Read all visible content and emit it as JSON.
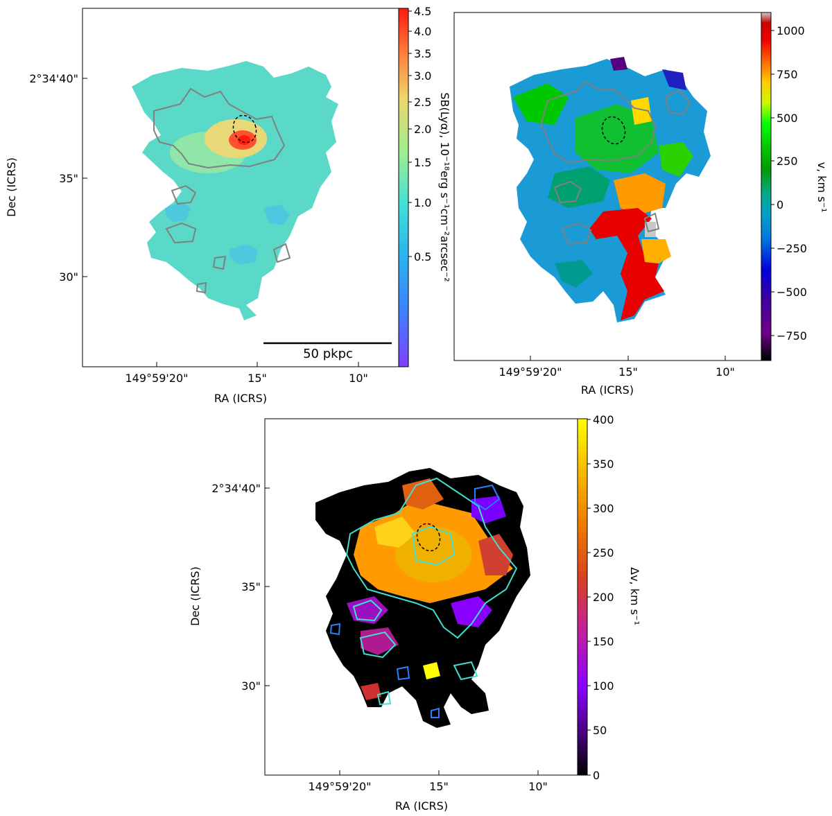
{
  "chart_data": [
    {
      "type": "heatmap",
      "panel": "top-left",
      "xlabel": "RA (ICRS)",
      "ylabel": "Dec (ICRS)",
      "x_ticks": [
        "149°59'20\"",
        "15\"",
        "10\""
      ],
      "y_ticks": [
        "2°34'40\"",
        "35\"",
        "30\""
      ],
      "colorbar": {
        "label": "SB(Lyα),  10⁻¹⁸erg s⁻¹cm⁻²arcsec⁻²",
        "scale": "nonlinear",
        "colormap": "rainbow",
        "ticks": [
          "4.5",
          "4.0",
          "3.5",
          "3.0",
          "2.5",
          "2.0",
          "1.5",
          "1.0",
          "0.5"
        ]
      },
      "scalebar_label": "50 pkpc",
      "contour_color": "#808080"
    },
    {
      "type": "heatmap",
      "panel": "top-right",
      "xlabel": "RA (ICRS)",
      "ylabel": "",
      "x_ticks": [
        "149°59'20\"",
        "15\"",
        "10\""
      ],
      "colorbar": {
        "label": "v, km s⁻¹",
        "colormap": "nipy_spectral",
        "range": [
          -900,
          1100
        ],
        "ticks": [
          "1000",
          "750",
          "500",
          "250",
          "0",
          "−250",
          "−500",
          "−750"
        ]
      },
      "contour_color": "#808080"
    },
    {
      "type": "heatmap",
      "panel": "bottom",
      "xlabel": "RA (ICRS)",
      "ylabel": "Dec (ICRS)",
      "x_ticks": [
        "149°59'20\"",
        "15\"",
        "10\""
      ],
      "y_ticks": [
        "2°34'40\"",
        "35\"",
        "30\""
      ],
      "colorbar": {
        "label": "Δv, km s⁻¹",
        "colormap": "gnuplot",
        "range": [
          0,
          400
        ],
        "ticks": [
          "400",
          "350",
          "300",
          "250",
          "200",
          "150",
          "100",
          "50",
          "0"
        ]
      },
      "contour_colors": [
        "#40e0d0",
        "#2a7fff"
      ]
    }
  ]
}
